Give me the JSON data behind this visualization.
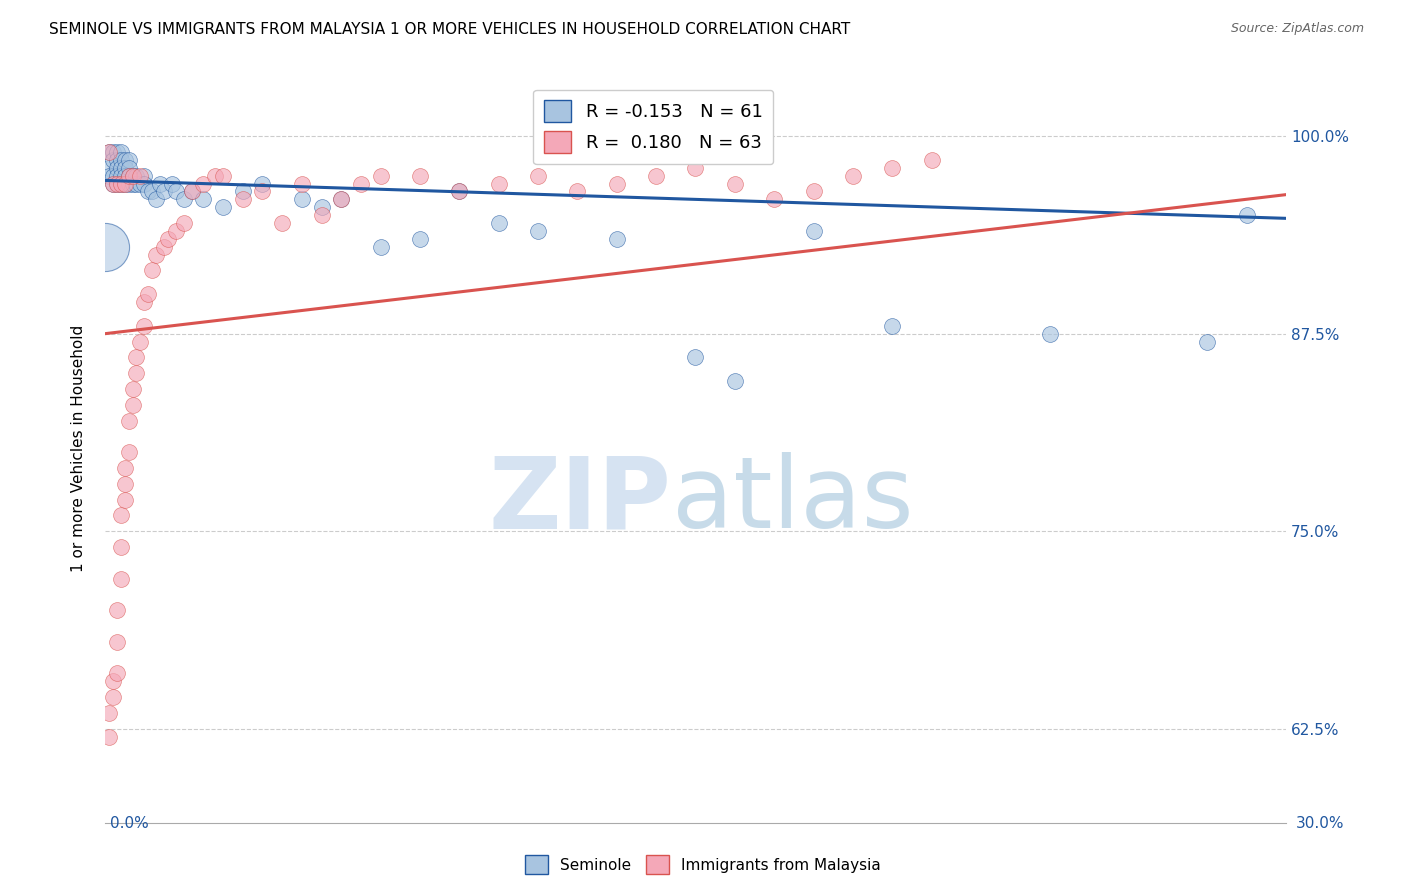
{
  "title": "SEMINOLE VS IMMIGRANTS FROM MALAYSIA 1 OR MORE VEHICLES IN HOUSEHOLD CORRELATION CHART",
  "source": "Source: ZipAtlas.com",
  "ylabel": "1 or more Vehicles in Household",
  "ytick_labels": [
    "62.5%",
    "75.0%",
    "87.5%",
    "100.0%"
  ],
  "ytick_values": [
    0.625,
    0.75,
    0.875,
    1.0
  ],
  "xmin": 0.0,
  "xmax": 0.3,
  "ymin": 0.565,
  "ymax": 1.04,
  "legend_blue_R": "-0.153",
  "legend_blue_N": "61",
  "legend_pink_R": "0.180",
  "legend_pink_N": "63",
  "blue_color": "#a8c4e0",
  "blue_line_color": "#2057a0",
  "pink_color": "#f4a8b8",
  "pink_line_color": "#d9534f",
  "seminole_x": [
    0.001,
    0.001,
    0.001,
    0.002,
    0.002,
    0.002,
    0.002,
    0.003,
    0.003,
    0.003,
    0.003,
    0.003,
    0.004,
    0.004,
    0.004,
    0.004,
    0.004,
    0.005,
    0.005,
    0.005,
    0.005,
    0.006,
    0.006,
    0.006,
    0.006,
    0.007,
    0.007,
    0.008,
    0.008,
    0.009,
    0.01,
    0.01,
    0.011,
    0.012,
    0.013,
    0.014,
    0.015,
    0.017,
    0.018,
    0.02,
    0.022,
    0.025,
    0.03,
    0.035,
    0.04,
    0.05,
    0.055,
    0.06,
    0.07,
    0.08,
    0.09,
    0.1,
    0.11,
    0.13,
    0.15,
    0.16,
    0.18,
    0.2,
    0.24,
    0.28,
    0.29
  ],
  "seminole_y": [
    0.99,
    0.98,
    0.975,
    0.99,
    0.985,
    0.975,
    0.97,
    0.99,
    0.985,
    0.98,
    0.975,
    0.97,
    0.99,
    0.985,
    0.98,
    0.975,
    0.97,
    0.985,
    0.98,
    0.975,
    0.97,
    0.985,
    0.98,
    0.975,
    0.97,
    0.975,
    0.97,
    0.975,
    0.97,
    0.97,
    0.975,
    0.97,
    0.965,
    0.965,
    0.96,
    0.97,
    0.965,
    0.97,
    0.965,
    0.96,
    0.965,
    0.96,
    0.955,
    0.965,
    0.97,
    0.96,
    0.955,
    0.96,
    0.93,
    0.935,
    0.965,
    0.945,
    0.94,
    0.935,
    0.86,
    0.845,
    0.94,
    0.88,
    0.875,
    0.87,
    0.95
  ],
  "malaysia_x": [
    0.001,
    0.001,
    0.001,
    0.002,
    0.002,
    0.002,
    0.003,
    0.003,
    0.003,
    0.003,
    0.004,
    0.004,
    0.004,
    0.004,
    0.005,
    0.005,
    0.005,
    0.005,
    0.006,
    0.006,
    0.006,
    0.007,
    0.007,
    0.007,
    0.008,
    0.008,
    0.009,
    0.009,
    0.01,
    0.01,
    0.011,
    0.012,
    0.013,
    0.015,
    0.016,
    0.018,
    0.02,
    0.022,
    0.025,
    0.028,
    0.03,
    0.035,
    0.04,
    0.045,
    0.05,
    0.055,
    0.06,
    0.065,
    0.07,
    0.08,
    0.09,
    0.1,
    0.11,
    0.12,
    0.13,
    0.14,
    0.15,
    0.16,
    0.17,
    0.18,
    0.19,
    0.2,
    0.21
  ],
  "malaysia_y": [
    0.62,
    0.635,
    0.99,
    0.645,
    0.655,
    0.97,
    0.66,
    0.68,
    0.7,
    0.97,
    0.72,
    0.74,
    0.76,
    0.97,
    0.77,
    0.78,
    0.79,
    0.97,
    0.8,
    0.82,
    0.975,
    0.83,
    0.84,
    0.975,
    0.85,
    0.86,
    0.87,
    0.975,
    0.88,
    0.895,
    0.9,
    0.915,
    0.925,
    0.93,
    0.935,
    0.94,
    0.945,
    0.965,
    0.97,
    0.975,
    0.975,
    0.96,
    0.965,
    0.945,
    0.97,
    0.95,
    0.96,
    0.97,
    0.975,
    0.975,
    0.965,
    0.97,
    0.975,
    0.965,
    0.97,
    0.975,
    0.98,
    0.97,
    0.96,
    0.965,
    0.975,
    0.98,
    0.985
  ],
  "blue_large_bubble_x": [
    0.0
  ],
  "blue_large_bubble_y": [
    0.93
  ],
  "blue_trendline_x": [
    0.0,
    0.3
  ],
  "blue_trendline_y": [
    0.972,
    0.948
  ],
  "pink_trendline_x": [
    0.0,
    0.3
  ],
  "pink_trendline_y": [
    0.875,
    0.963
  ]
}
